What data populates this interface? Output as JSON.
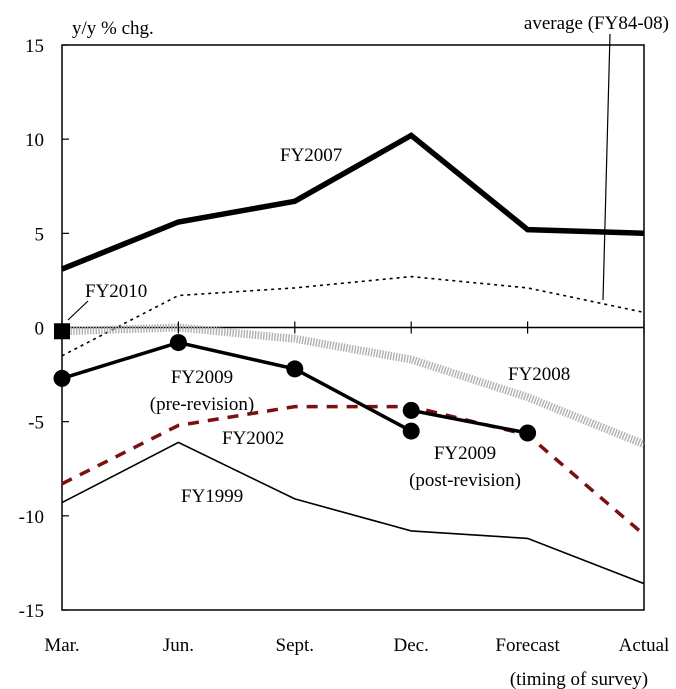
{
  "chart_data": {
    "type": "line",
    "ylabel": "y/y % chg.",
    "xlabel": "(timing of survey)",
    "categories": [
      "Mar.",
      "Jun.",
      "Sept.",
      "Dec.",
      "Forecast",
      "Actual"
    ],
    "ylim": [
      -15,
      15
    ],
    "yticks": [
      15,
      10,
      5,
      0,
      -5,
      -10,
      -15
    ],
    "grid": false,
    "series": [
      {
        "name": "FY2007",
        "style": "thick-solid",
        "color": "#000000",
        "x": [
          0,
          1,
          2,
          3,
          4,
          5
        ],
        "values": [
          3.1,
          5.6,
          6.7,
          10.2,
          5.2,
          5.0
        ]
      },
      {
        "name": "average (FY84-08)",
        "style": "dotted",
        "color": "#000000",
        "x": [
          0,
          1,
          2,
          3,
          4,
          5
        ],
        "values": [
          -1.5,
          1.7,
          2.1,
          2.7,
          2.1,
          0.8
        ]
      },
      {
        "name": "FY2008",
        "style": "thick-gray",
        "color": "#b0b0b0",
        "x": [
          0,
          1,
          2,
          3,
          4,
          5
        ],
        "values": [
          -0.2,
          0.0,
          -0.6,
          -1.7,
          -3.7,
          -6.2
        ]
      },
      {
        "name": "FY2002",
        "style": "dashed",
        "color": "#7a1010",
        "x": [
          0,
          1,
          2,
          3,
          4,
          5
        ],
        "values": [
          -8.3,
          -5.2,
          -4.2,
          -4.2,
          -5.7,
          -11.0
        ]
      },
      {
        "name": "FY1999",
        "style": "thin-solid",
        "color": "#000000",
        "x": [
          0,
          1,
          2,
          3,
          4,
          5
        ],
        "values": [
          -9.3,
          -6.1,
          -9.1,
          -10.8,
          -11.2,
          -13.6
        ]
      },
      {
        "name": "FY2009 (pre-revision)",
        "style": "marker-line",
        "color": "#000000",
        "x": [
          0,
          1,
          2,
          3
        ],
        "values": [
          -2.7,
          -0.8,
          -2.2,
          -5.5
        ]
      },
      {
        "name": "FY2009 (post-revision)",
        "style": "marker-line",
        "color": "#000000",
        "x": [
          3,
          4
        ],
        "values": [
          -4.4,
          -5.6
        ]
      },
      {
        "name": "FY2010",
        "style": "square-marker",
        "color": "#000000",
        "x": [
          0
        ],
        "values": [
          -0.2
        ]
      }
    ],
    "labels": {
      "fy2007": "FY2007",
      "average": "average (FY84-08)",
      "fy2010": "FY2010",
      "fy2009_pre_line1": "FY2009",
      "fy2009_pre_line2": "(pre-revision)",
      "fy2008": "FY2008",
      "fy2002": "FY2002",
      "fy2009_post_line1": "FY2009",
      "fy2009_post_line2": "(post-revision)",
      "fy1999": "FY1999"
    }
  }
}
